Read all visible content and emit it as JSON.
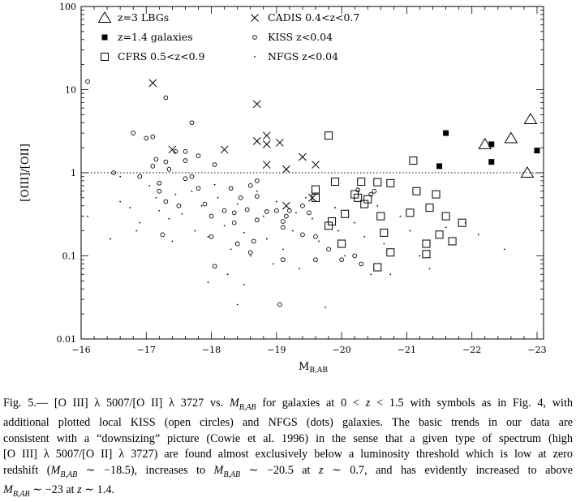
{
  "chart_data": {
    "type": "scatter",
    "xlabel": "M_B,AB",
    "ylabel": "[OIII]/[OII]",
    "xlim": [
      -16,
      -23.1
    ],
    "ylim": [
      0.01,
      100
    ],
    "y_scale": "log",
    "x_ticks": [
      "−16",
      "−17",
      "−18",
      "−19",
      "−20",
      "−21",
      "−22",
      "−23"
    ],
    "x_tick_values": [
      -16,
      -17,
      -18,
      -19,
      -20,
      -21,
      -22,
      -23
    ],
    "y_ticks": [
      "0.01",
      "0.1",
      "1",
      "10",
      "100"
    ],
    "y_tick_values": [
      0.01,
      0.1,
      1,
      10,
      100
    ],
    "reference_line": {
      "y": 1,
      "style": "dotted"
    },
    "legend": [
      {
        "label": "z=3 LBGs",
        "marker": "triangle"
      },
      {
        "label": "z=1.4 galaxies",
        "marker": "filled-square"
      },
      {
        "label": "CFRS 0.5<z<0.9",
        "marker": "open-square"
      },
      {
        "label": "CADIS 0.4<z<0.7",
        "marker": "cross"
      },
      {
        "label": "KISS z<0.04",
        "marker": "open-circle"
      },
      {
        "label": "NFGS z<0.04",
        "marker": "dot"
      }
    ],
    "series": [
      {
        "name": "z=3 LBGs",
        "marker": "triangle",
        "points": [
          [
            -22.2,
            2.2
          ],
          [
            -22.6,
            2.6
          ],
          [
            -22.9,
            4.4
          ],
          [
            -22.85,
            1.0
          ]
        ]
      },
      {
        "name": "z=1.4 galaxies",
        "marker": "filled-square",
        "points": [
          [
            -21.6,
            3.0
          ],
          [
            -22.3,
            2.2
          ],
          [
            -22.3,
            1.35
          ],
          [
            -21.5,
            1.2
          ],
          [
            -23.0,
            1.85
          ]
        ]
      },
      {
        "name": "CFRS 0.5<z<0.9",
        "marker": "open-square",
        "points": [
          [
            -19.8,
            2.8
          ],
          [
            -21.1,
            1.4
          ],
          [
            -19.6,
            0.63
          ],
          [
            -19.9,
            0.78
          ],
          [
            -20.3,
            0.78
          ],
          [
            -20.55,
            0.77
          ],
          [
            -20.75,
            0.75
          ],
          [
            -20.2,
            0.55
          ],
          [
            -20.25,
            0.5
          ],
          [
            -20.4,
            0.48
          ],
          [
            -20.35,
            0.42
          ],
          [
            -19.6,
            0.5
          ],
          [
            -21.15,
            0.6
          ],
          [
            -21.45,
            0.55
          ],
          [
            -20.05,
            0.32
          ],
          [
            -20.6,
            0.3
          ],
          [
            -21.05,
            0.33
          ],
          [
            -21.35,
            0.38
          ],
          [
            -21.6,
            0.3
          ],
          [
            -21.85,
            0.25
          ],
          [
            -19.85,
            0.26
          ],
          [
            -19.8,
            0.23
          ],
          [
            -20.65,
            0.19
          ],
          [
            -20.0,
            0.14
          ],
          [
            -21.3,
            0.14
          ],
          [
            -21.5,
            0.18
          ],
          [
            -21.7,
            0.15
          ],
          [
            -21.3,
            0.105
          ],
          [
            -20.75,
            0.11
          ],
          [
            -20.55,
            0.073
          ]
        ]
      },
      {
        "name": "CADIS 0.4<z<0.7",
        "marker": "cross",
        "points": [
          [
            -17.1,
            12
          ],
          [
            -18.7,
            6.7
          ],
          [
            -17.4,
            1.9
          ],
          [
            -18.2,
            1.9
          ],
          [
            -18.85,
            2.8
          ],
          [
            -18.7,
            2.4
          ],
          [
            -18.85,
            2.2
          ],
          [
            -19.05,
            2.3
          ],
          [
            -19.4,
            1.55
          ],
          [
            -18.85,
            1.25
          ],
          [
            -19.15,
            1.1
          ],
          [
            -19.6,
            1.25
          ],
          [
            -19.55,
            0.5
          ],
          [
            -19.15,
            0.4
          ]
        ]
      },
      {
        "name": "KISS z<0.04",
        "marker": "open-circle",
        "points": [
          [
            -16.1,
            12.5
          ],
          [
            -17.3,
            8
          ],
          [
            -16.8,
            3
          ],
          [
            -17.0,
            2.6
          ],
          [
            -17.1,
            2.7
          ],
          [
            -17.7,
            4.0
          ],
          [
            -17.45,
            1.8
          ],
          [
            -17.6,
            1.8
          ],
          [
            -17.8,
            1.6
          ],
          [
            -17.15,
            1.45
          ],
          [
            -17.3,
            1.35
          ],
          [
            -17.6,
            1.4
          ],
          [
            -17.35,
            1.1
          ],
          [
            -17.1,
            1.2
          ],
          [
            -18.05,
            1.25
          ],
          [
            -16.5,
            1.0
          ],
          [
            -16.9,
            0.9
          ],
          [
            -17.2,
            0.75
          ],
          [
            -17.6,
            0.85
          ],
          [
            -17.7,
            0.9
          ],
          [
            -18.7,
            0.8
          ],
          [
            -18.3,
            0.65
          ],
          [
            -18.6,
            0.7
          ],
          [
            -17.8,
            0.65
          ],
          [
            -17.2,
            0.6
          ],
          [
            -18.45,
            0.5
          ],
          [
            -18.7,
            0.52
          ],
          [
            -17.3,
            0.45
          ],
          [
            -17.9,
            0.42
          ],
          [
            -17.5,
            0.4
          ],
          [
            -18.2,
            0.35
          ],
          [
            -18.35,
            0.33
          ],
          [
            -18.55,
            0.36
          ],
          [
            -18.85,
            0.34
          ],
          [
            -19.0,
            0.35
          ],
          [
            -19.2,
            0.35
          ],
          [
            -19.4,
            0.4
          ],
          [
            -19.15,
            0.3
          ],
          [
            -19.5,
            0.33
          ],
          [
            -20.25,
            0.62
          ],
          [
            -20.5,
            0.6
          ],
          [
            -20.45,
            0.55
          ],
          [
            -18.0,
            0.3
          ],
          [
            -18.35,
            0.25
          ],
          [
            -18.7,
            0.27
          ],
          [
            -19.1,
            0.26
          ],
          [
            -18.0,
            0.17
          ],
          [
            -18.4,
            0.14
          ],
          [
            -18.65,
            0.15
          ],
          [
            -19.1,
            0.22
          ],
          [
            -19.4,
            0.18
          ],
          [
            -19.6,
            0.17
          ],
          [
            -17.25,
            0.18
          ],
          [
            -19.8,
            0.12
          ],
          [
            -19.6,
            0.09
          ],
          [
            -20.2,
            0.1
          ],
          [
            -20.3,
            0.08
          ],
          [
            -20.0,
            0.09
          ],
          [
            -19.1,
            0.09
          ],
          [
            -18.6,
            0.11
          ],
          [
            -18.05,
            0.075
          ],
          [
            -19.05,
            0.026
          ]
        ]
      },
      {
        "name": "NFGS z<0.04",
        "marker": "dot",
        "points": [
          [
            -16.0,
            0.55
          ],
          [
            -16.1,
            0.3
          ],
          [
            -16.45,
            0.16
          ],
          [
            -16.6,
            0.9
          ],
          [
            -16.6,
            0.45
          ],
          [
            -16.75,
            0.38
          ],
          [
            -16.85,
            0.2
          ],
          [
            -17.05,
            0.7
          ],
          [
            -17.15,
            0.5
          ],
          [
            -17.2,
            0.35
          ],
          [
            -17.35,
            0.28
          ],
          [
            -17.45,
            0.55
          ],
          [
            -17.55,
            0.32
          ],
          [
            -17.7,
            0.6
          ],
          [
            -17.75,
            0.2
          ],
          [
            -17.85,
            0.4
          ],
          [
            -17.95,
            0.17
          ],
          [
            -18.05,
            0.72
          ],
          [
            -18.1,
            0.5
          ],
          [
            -18.2,
            0.23
          ],
          [
            -18.3,
            0.12
          ],
          [
            -18.4,
            0.42
          ],
          [
            -18.5,
            0.19
          ],
          [
            -18.6,
            0.1
          ],
          [
            -18.7,
            0.6
          ],
          [
            -18.8,
            0.3
          ],
          [
            -18.85,
            0.16
          ],
          [
            -18.95,
            0.08
          ],
          [
            -19.0,
            0.45
          ],
          [
            -19.1,
            0.12
          ],
          [
            -19.25,
            0.2
          ],
          [
            -19.35,
            0.07
          ],
          [
            -19.45,
            0.5
          ],
          [
            -19.55,
            0.28
          ],
          [
            -19.65,
            0.15
          ],
          [
            -19.75,
            0.024
          ],
          [
            -19.9,
            0.38
          ],
          [
            -19.95,
            0.2
          ],
          [
            -20.05,
            0.1
          ],
          [
            -20.2,
            0.25
          ],
          [
            -20.35,
            0.17
          ],
          [
            -20.45,
            0.06
          ],
          [
            -20.55,
            0.4
          ],
          [
            -20.65,
            0.14
          ],
          [
            -20.75,
            0.06
          ],
          [
            -20.9,
            0.3
          ],
          [
            -21.05,
            0.2
          ],
          [
            -21.2,
            0.1
          ],
          [
            -21.35,
            0.07
          ],
          [
            -21.6,
            0.22
          ],
          [
            -21.9,
            0.25
          ],
          [
            -22.1,
            0.18
          ],
          [
            -22.5,
            0.12
          ],
          [
            -18.25,
            0.06
          ],
          [
            -18.5,
            0.045
          ],
          [
            -18.4,
            0.026
          ],
          [
            -17.95,
            0.048
          ],
          [
            -19.3,
            0.33
          ],
          [
            -17.4,
            0.15
          ],
          [
            -16.9,
            0.25
          ]
        ]
      }
    ]
  },
  "caption": {
    "lines": [
      [
        "Fig. 5.— [O III] λ 5007/[O II] λ 3727 vs. ",
        {
          "i": "M"
        },
        {
          "sub": "B,AB"
        },
        " for galaxies at 0 < ",
        {
          "i": "z"
        },
        " < 1.5 with symbols as in Fig. 4, with"
      ],
      [
        "additional plotted local KISS (open circles) and NFGS (dots) galaxies. The basic trends in our data are"
      ],
      [
        "consistent with a “downsizing” picture (Cowie et al. 1996) in the sense that a given type of spectrum (high"
      ],
      [
        "[O III] λ 5007/[O II] λ 3727) are found almost exclusively below a luminosity threshold which is low at zero"
      ],
      [
        "redshift (",
        {
          "i": "M"
        },
        {
          "sub": "B,AB"
        },
        " ∼ −18.5), increases to ",
        {
          "i": "M"
        },
        {
          "sub": "B,AB"
        },
        " ∼ −20.5 at ",
        {
          "i": "z"
        },
        " ∼ 0.7, and has evidently increased to above"
      ],
      [
        {
          "i": "M"
        },
        {
          "sub": "B,AB"
        },
        " ∼ −23 at ",
        {
          "i": "z"
        },
        " ∼ 1.4."
      ]
    ]
  }
}
